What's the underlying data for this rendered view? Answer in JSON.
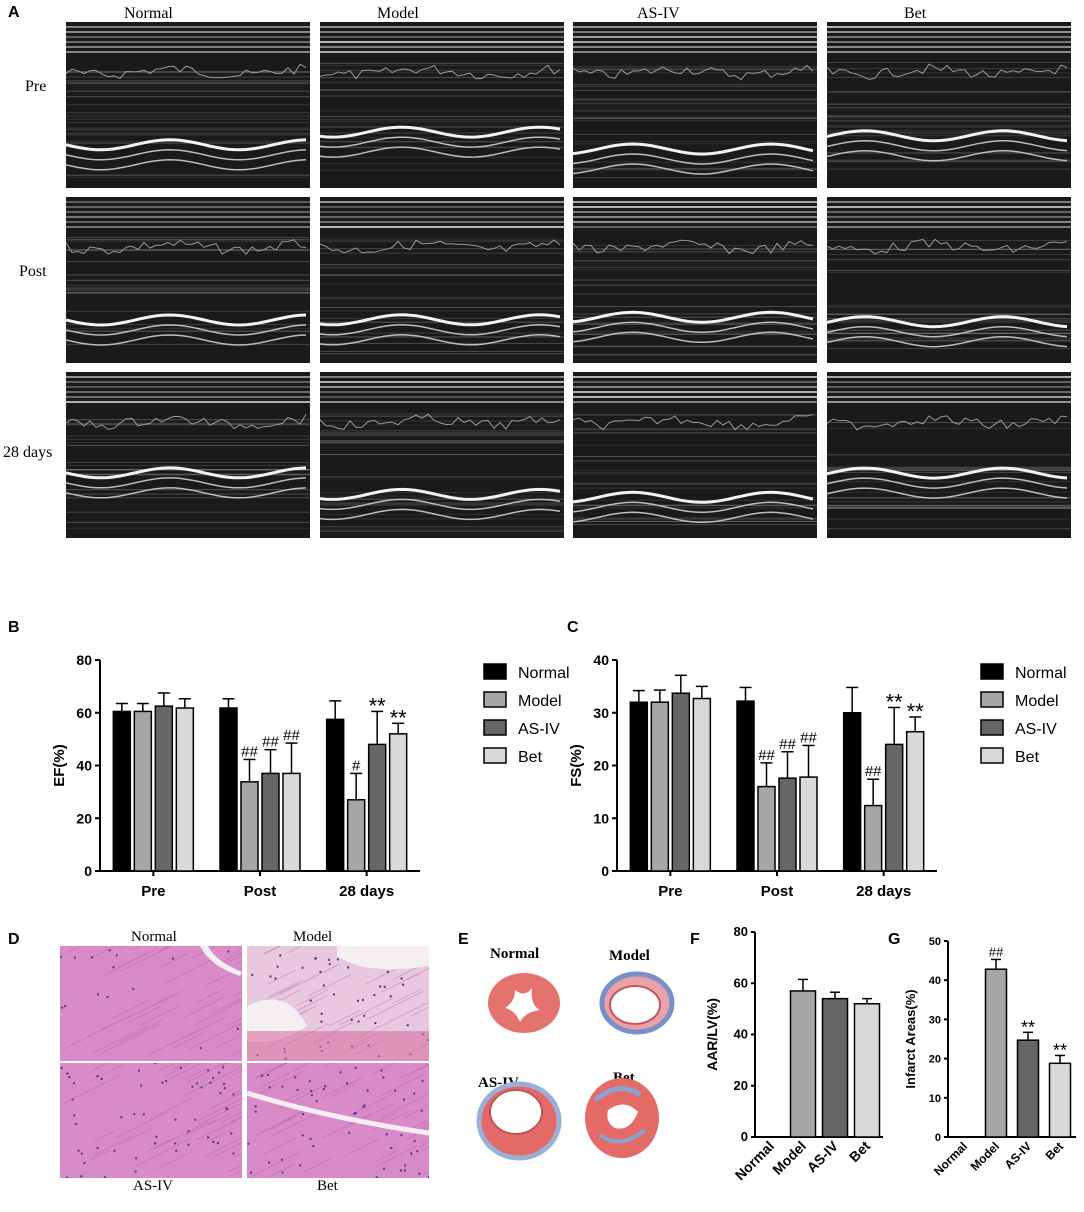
{
  "panels": {
    "A": "A",
    "B": "B",
    "C": "C",
    "D": "D",
    "E": "E",
    "F": "F",
    "G": "G"
  },
  "panel_a": {
    "columns": [
      "Normal",
      "Model",
      "AS-IV",
      "Bet"
    ],
    "rows": [
      "Pre",
      "Post",
      "28 days"
    ]
  },
  "panel_d": {
    "labels": [
      "Normal",
      "Model",
      "AS-IV",
      "Bet"
    ]
  },
  "panel_e": {
    "labels": [
      "Normal",
      "Model",
      "AS-IV",
      "Bet"
    ]
  },
  "colors": {
    "Normal": "#000000",
    "Model": "#a6a6a6",
    "AS-IV": "#666666",
    "Bet": "#d9d9d9",
    "he_pink": "#d98bc7",
    "ttc_red": "#e4736e"
  },
  "chart_data": [
    {
      "id": "B",
      "type": "bar",
      "categories": [
        "Pre",
        "Post",
        "28 days"
      ],
      "ylabel": "EF(%)",
      "ylim": [
        0,
        80
      ],
      "yticks": [
        0,
        20,
        40,
        60,
        80
      ],
      "legend_position": "right",
      "series": [
        {
          "name": "Normal",
          "values": [
            60.5,
            61.8,
            57.5
          ],
          "errors": [
            3,
            3.5,
            7
          ],
          "annotations": [
            "",
            "",
            ""
          ]
        },
        {
          "name": "Model",
          "values": [
            60.5,
            33.8,
            27
          ],
          "errors": [
            3,
            8.5,
            10
          ],
          "annotations": [
            "",
            "##",
            "#"
          ]
        },
        {
          "name": "AS-IV",
          "values": [
            62.5,
            37,
            48
          ],
          "errors": [
            5,
            9,
            12.5
          ],
          "annotations": [
            "",
            "##",
            "**"
          ]
        },
        {
          "name": "Bet",
          "values": [
            61.8,
            37,
            52
          ],
          "errors": [
            3.5,
            11.5,
            4
          ],
          "annotations": [
            "",
            "##",
            "**"
          ]
        }
      ]
    },
    {
      "id": "C",
      "type": "bar",
      "categories": [
        "Pre",
        "Post",
        "28 days"
      ],
      "ylabel": "FS(%)",
      "ylim": [
        0,
        40
      ],
      "yticks": [
        0,
        10,
        20,
        30,
        40
      ],
      "legend_position": "right",
      "series": [
        {
          "name": "Normal",
          "values": [
            32,
            32.2,
            30
          ],
          "errors": [
            2.2,
            2.6,
            4.8
          ],
          "annotations": [
            "",
            "",
            ""
          ]
        },
        {
          "name": "Model",
          "values": [
            32,
            16,
            12.4
          ],
          "errors": [
            2.3,
            4.5,
            5
          ],
          "annotations": [
            "",
            "##",
            "##"
          ]
        },
        {
          "name": "AS-IV",
          "values": [
            33.7,
            17.6,
            24
          ],
          "errors": [
            3.4,
            5,
            7
          ],
          "annotations": [
            "",
            "##",
            "**"
          ]
        },
        {
          "name": "Bet",
          "values": [
            32.7,
            17.8,
            26.4
          ],
          "errors": [
            2.3,
            6,
            2.8
          ],
          "annotations": [
            "",
            "##",
            "**"
          ]
        }
      ]
    },
    {
      "id": "F",
      "type": "bar",
      "categories": [
        "Normal",
        "Model",
        "AS-IV",
        "Bet"
      ],
      "ylabel": "AAR/LV(%)",
      "ylim": [
        0,
        80
      ],
      "yticks": [
        0,
        20,
        40,
        60,
        80
      ],
      "values": [
        0,
        57,
        54,
        52
      ],
      "errors": [
        0,
        4.5,
        2.5,
        2
      ],
      "annotations": [
        "",
        "",
        "",
        ""
      ]
    },
    {
      "id": "G",
      "type": "bar",
      "categories": [
        "Normal",
        "Model",
        "AS-IV",
        "Bet"
      ],
      "ylabel": "Infarct Areas(%)",
      "ylim": [
        0,
        50
      ],
      "yticks": [
        0,
        10,
        20,
        30,
        40,
        50
      ],
      "values": [
        0,
        42.8,
        24.7,
        18.8
      ],
      "errors": [
        0,
        2.5,
        2,
        2
      ],
      "annotations": [
        "",
        "##",
        "**",
        "**"
      ]
    }
  ]
}
